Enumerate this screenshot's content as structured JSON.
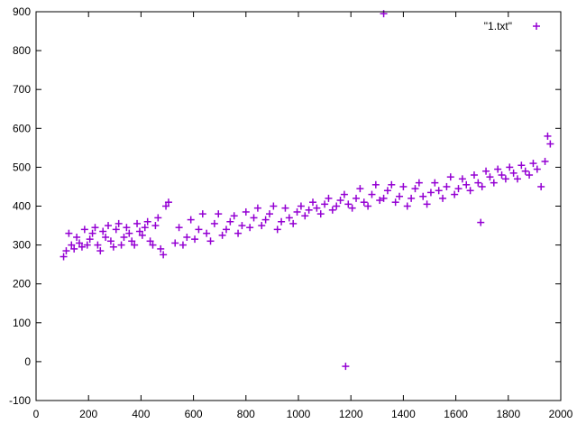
{
  "chart_data": {
    "type": "scatter",
    "title": "",
    "xlabel": "",
    "ylabel": "",
    "xlim": [
      0,
      2000
    ],
    "ylim": [
      -100,
      900
    ],
    "xticks": [
      0,
      200,
      400,
      600,
      800,
      1000,
      1200,
      1400,
      1600,
      1800,
      2000
    ],
    "yticks": [
      -100,
      0,
      100,
      200,
      300,
      400,
      500,
      600,
      700,
      800,
      900
    ],
    "grid": false,
    "legend": {
      "position": "top-right",
      "entries": [
        "\"1.txt\""
      ]
    },
    "series": [
      {
        "name": "\"1.txt\"",
        "marker": "plus",
        "color": "#9400d3",
        "x": [
          105,
          115,
          125,
          135,
          145,
          155,
          165,
          175,
          185,
          195,
          205,
          215,
          225,
          235,
          245,
          255,
          265,
          275,
          285,
          295,
          305,
          315,
          325,
          335,
          345,
          355,
          365,
          375,
          385,
          395,
          405,
          415,
          425,
          435,
          445,
          455,
          465,
          475,
          485,
          495,
          505,
          530,
          545,
          560,
          575,
          590,
          605,
          620,
          635,
          650,
          665,
          680,
          695,
          710,
          725,
          740,
          755,
          770,
          785,
          800,
          815,
          830,
          845,
          860,
          875,
          890,
          905,
          920,
          935,
          950,
          965,
          980,
          995,
          1010,
          1025,
          1040,
          1055,
          1070,
          1085,
          1100,
          1115,
          1130,
          1145,
          1160,
          1175,
          1190,
          1205,
          1220,
          1235,
          1250,
          1265,
          1280,
          1295,
          1310,
          1325,
          1340,
          1355,
          1370,
          1385,
          1400,
          1415,
          1430,
          1445,
          1460,
          1475,
          1490,
          1505,
          1520,
          1535,
          1550,
          1565,
          1580,
          1595,
          1610,
          1625,
          1640,
          1655,
          1670,
          1685,
          1700,
          1715,
          1730,
          1745,
          1760,
          1775,
          1790,
          1805,
          1820,
          1835,
          1850,
          1865,
          1880,
          1895,
          1910,
          1925,
          1940,
          1950,
          1960,
          1325,
          1180,
          1695
        ],
        "y": [
          270,
          285,
          330,
          300,
          290,
          320,
          305,
          295,
          340,
          300,
          315,
          330,
          345,
          300,
          285,
          335,
          320,
          350,
          310,
          295,
          340,
          355,
          300,
          320,
          345,
          330,
          310,
          300,
          355,
          335,
          325,
          345,
          360,
          310,
          300,
          350,
          370,
          290,
          275,
          400,
          410,
          305,
          345,
          300,
          320,
          365,
          315,
          340,
          380,
          330,
          310,
          355,
          380,
          325,
          340,
          360,
          375,
          330,
          350,
          385,
          345,
          370,
          395,
          350,
          365,
          380,
          400,
          340,
          360,
          395,
          370,
          355,
          385,
          400,
          375,
          390,
          410,
          395,
          380,
          405,
          420,
          390,
          400,
          415,
          430,
          405,
          395,
          420,
          445,
          410,
          400,
          430,
          455,
          415,
          420,
          440,
          455,
          410,
          425,
          450,
          400,
          420,
          445,
          460,
          425,
          405,
          435,
          460,
          440,
          420,
          450,
          475,
          430,
          445,
          470,
          455,
          440,
          480,
          460,
          450,
          490,
          475,
          460,
          495,
          480,
          470,
          500,
          485,
          470,
          505,
          490,
          480,
          510,
          495,
          450,
          515,
          580,
          560,
          895,
          -12,
          358
        ]
      }
    ]
  }
}
